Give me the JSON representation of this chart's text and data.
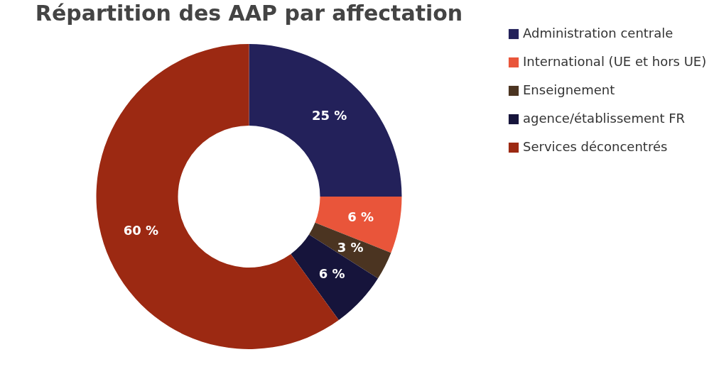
{
  "chart_data": {
    "type": "donut",
    "title": "Répartition des AAP par affectation",
    "categories": [
      "Administration centrale",
      "International (UE et hors UE)",
      "Enseignement",
      "agence/établissement FR",
      "Services déconcentrés"
    ],
    "values": [
      25,
      6,
      3,
      6,
      60
    ],
    "colors": [
      "#23215a",
      "#e9553a",
      "#4b3421",
      "#16143b",
      "#9c2912"
    ],
    "value_labels": [
      "25 %",
      "6 %",
      "3 %",
      "6 %",
      "60 %"
    ],
    "legend": "right"
  }
}
